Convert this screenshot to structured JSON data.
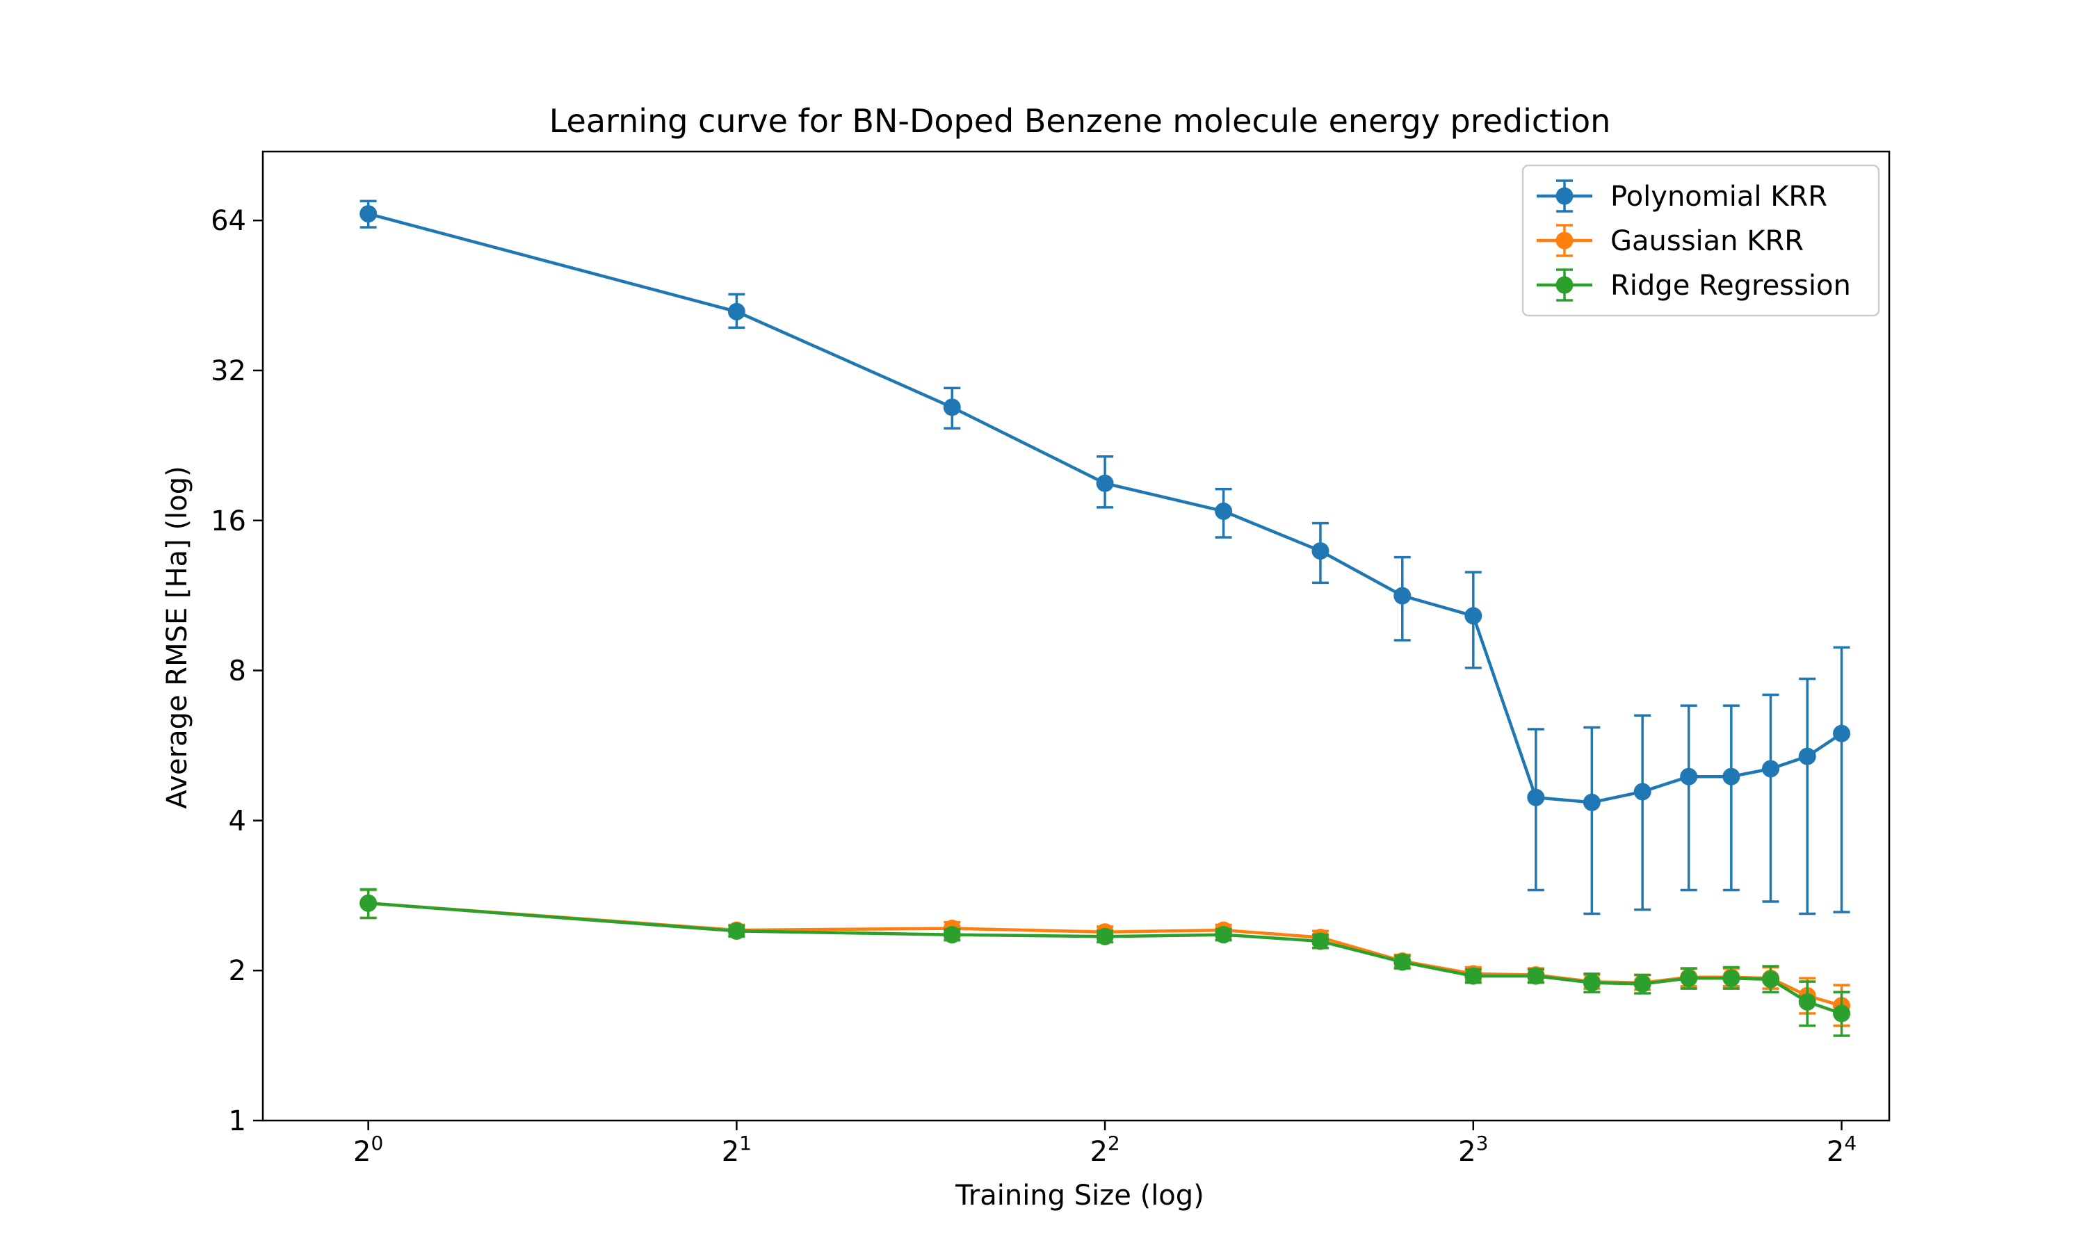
{
  "chart_data": {
    "type": "line",
    "title": "Learning curve for BN-Doped Benzene molecule energy prediction",
    "xlabel": "Training Size (log)",
    "ylabel": "Average RMSE [Ha] (log)",
    "x_scale": "log2",
    "y_scale": "log2",
    "xlim": [
      0.82,
      17.5
    ],
    "ylim": [
      1,
      88
    ],
    "x_ticks": [
      {
        "value": 1,
        "base": "2",
        "exp": "0"
      },
      {
        "value": 2,
        "base": "2",
        "exp": "1"
      },
      {
        "value": 4,
        "base": "2",
        "exp": "2"
      },
      {
        "value": 8,
        "base": "2",
        "exp": "3"
      },
      {
        "value": 16,
        "base": "2",
        "exp": "4"
      }
    ],
    "y_ticks": [
      {
        "value": 1,
        "label": "1"
      },
      {
        "value": 2,
        "label": "2"
      },
      {
        "value": 4,
        "label": "4"
      },
      {
        "value": 8,
        "label": "8"
      },
      {
        "value": 16,
        "label": "16"
      },
      {
        "value": 32,
        "label": "32"
      },
      {
        "value": 64,
        "label": "64"
      }
    ],
    "grid": false,
    "legend_position": "top-right",
    "x": [
      1,
      2,
      3,
      4,
      5,
      6,
      7,
      8,
      9,
      10,
      11,
      12,
      13,
      14,
      15,
      16
    ],
    "series": [
      {
        "name": "Polynomial KRR",
        "color": "#1f77b4",
        "values": [
          66,
          42,
          27,
          19,
          16.7,
          13.9,
          11.3,
          10.3,
          4.45,
          4.35,
          4.57,
          4.9,
          4.9,
          5.08,
          5.38,
          5.98
        ],
        "err_low": [
          62,
          39,
          24.5,
          17,
          14.8,
          12,
          9.2,
          8.1,
          2.9,
          2.6,
          2.65,
          2.9,
          2.9,
          2.75,
          2.6,
          2.62
        ],
        "err_high": [
          70,
          45.5,
          29.5,
          21.5,
          18.5,
          15.8,
          13.5,
          12.6,
          6.1,
          6.15,
          6.5,
          6.8,
          6.8,
          7.15,
          7.7,
          8.9
        ]
      },
      {
        "name": "Gaussian KRR",
        "color": "#ff7f0e",
        "values": [
          2.73,
          2.41,
          2.43,
          2.39,
          2.41,
          2.33,
          2.09,
          1.97,
          1.96,
          1.9,
          1.89,
          1.94,
          1.94,
          1.93,
          1.78,
          1.7
        ],
        "err_low": [
          2.55,
          2.35,
          2.36,
          2.33,
          2.35,
          2.26,
          2.03,
          1.91,
          1.9,
          1.84,
          1.83,
          1.86,
          1.86,
          1.84,
          1.64,
          1.55
        ],
        "err_high": [
          2.9,
          2.47,
          2.5,
          2.45,
          2.47,
          2.4,
          2.15,
          2.03,
          2.02,
          1.96,
          1.96,
          2.02,
          2.02,
          2.03,
          1.93,
          1.87
        ]
      },
      {
        "name": "Ridge Regression",
        "color": "#2ca02c",
        "values": [
          2.73,
          2.4,
          2.36,
          2.34,
          2.36,
          2.29,
          2.08,
          1.95,
          1.95,
          1.89,
          1.88,
          1.93,
          1.93,
          1.92,
          1.73,
          1.64
        ],
        "err_low": [
          2.55,
          2.34,
          2.3,
          2.28,
          2.3,
          2.22,
          2.02,
          1.89,
          1.89,
          1.81,
          1.8,
          1.84,
          1.84,
          1.81,
          1.55,
          1.48
        ],
        "err_high": [
          2.91,
          2.46,
          2.42,
          2.4,
          2.42,
          2.36,
          2.14,
          2.01,
          2.01,
          1.97,
          1.96,
          2.02,
          2.03,
          2.04,
          1.9,
          1.81
        ]
      }
    ]
  }
}
